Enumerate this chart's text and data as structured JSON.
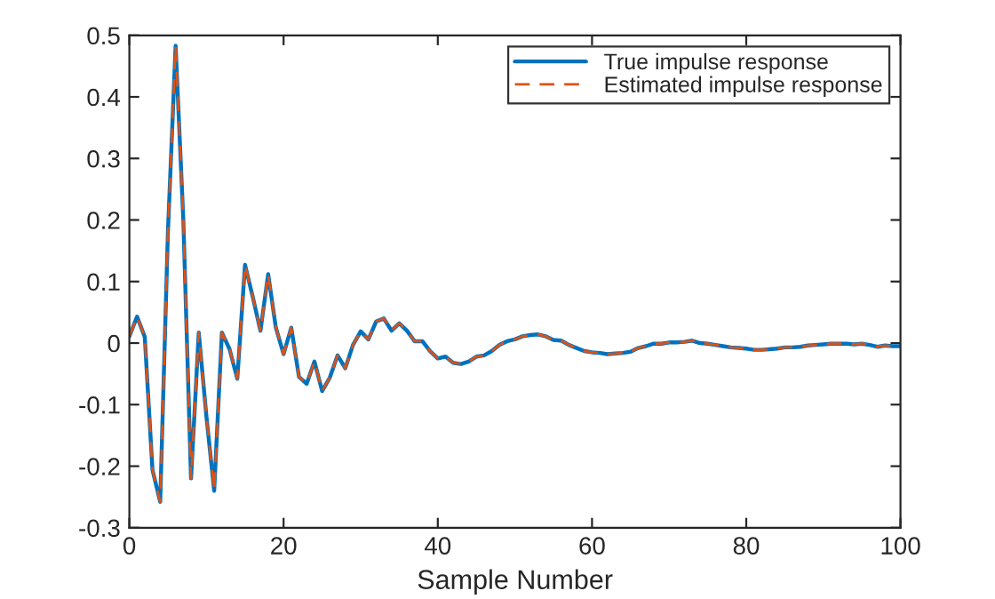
{
  "chart_data": {
    "type": "line",
    "xlabel": "Sample Number",
    "x": [
      0,
      1,
      2,
      3,
      4,
      5,
      6,
      7,
      8,
      9,
      10,
      11,
      12,
      13,
      14,
      15,
      16,
      17,
      18,
      19,
      20,
      21,
      22,
      23,
      24,
      25,
      26,
      27,
      28,
      29,
      30,
      31,
      32,
      33,
      34,
      35,
      36,
      37,
      38,
      39,
      40,
      41,
      42,
      43,
      44,
      45,
      46,
      47,
      48,
      49,
      50,
      51,
      52,
      53,
      54,
      55,
      56,
      57,
      58,
      59,
      60,
      61,
      62,
      63,
      64,
      65,
      66,
      67,
      68,
      69,
      70,
      71,
      72,
      73,
      74,
      75,
      76,
      77,
      78,
      79,
      80,
      81,
      82,
      83,
      84,
      85,
      86,
      87,
      88,
      89,
      90,
      91,
      92,
      93,
      94,
      95,
      96,
      97,
      98,
      99,
      100
    ],
    "series": [
      {
        "name": "True impulse response",
        "color": "#0072bd",
        "line_style": "solid",
        "values": [
          0.011,
          0.043,
          0.01,
          -0.206,
          -0.258,
          0.18,
          0.483,
          0.2,
          -0.22,
          0.017,
          -0.12,
          -0.24,
          0.017,
          -0.01,
          -0.058,
          0.127,
          0.075,
          0.02,
          0.112,
          0.025,
          -0.018,
          0.025,
          -0.055,
          -0.066,
          -0.03,
          -0.078,
          -0.056,
          -0.02,
          -0.041,
          -0.003,
          0.019,
          0.006,
          0.035,
          0.04,
          0.02,
          0.032,
          0.02,
          0.003,
          0.003,
          -0.013,
          -0.025,
          -0.022,
          -0.032,
          -0.034,
          -0.03,
          -0.022,
          -0.02,
          -0.013,
          -0.003,
          0.003,
          0.006,
          0.011,
          0.013,
          0.014,
          0.011,
          0.005,
          0.004,
          -0.003,
          -0.008,
          -0.013,
          -0.015,
          -0.016,
          -0.018,
          -0.017,
          -0.016,
          -0.014,
          -0.008,
          -0.005,
          -0.001,
          -0.001,
          0.001,
          0.001,
          0.002,
          0.004,
          0.0,
          -0.001,
          -0.003,
          -0.005,
          -0.007,
          -0.008,
          -0.009,
          -0.011,
          -0.011,
          -0.01,
          -0.009,
          -0.007,
          -0.007,
          -0.006,
          -0.004,
          -0.003,
          -0.002,
          -0.001,
          -0.001,
          -0.001,
          -0.002,
          -0.001,
          -0.003,
          -0.006,
          -0.004,
          -0.005,
          -0.005
        ]
      },
      {
        "name": "Estimated impulse response",
        "color": "#d95319",
        "line_style": "dashed",
        "values": [
          0.011,
          0.043,
          0.01,
          -0.206,
          -0.258,
          0.18,
          0.483,
          0.2,
          -0.22,
          0.017,
          -0.12,
          -0.24,
          0.017,
          -0.01,
          -0.058,
          0.127,
          0.075,
          0.02,
          0.112,
          0.025,
          -0.018,
          0.025,
          -0.055,
          -0.066,
          -0.03,
          -0.078,
          -0.056,
          -0.02,
          -0.041,
          -0.003,
          0.019,
          0.006,
          0.035,
          0.04,
          0.02,
          0.032,
          0.02,
          0.003,
          0.003,
          -0.013,
          -0.025,
          -0.022,
          -0.032,
          -0.034,
          -0.03,
          -0.022,
          -0.02,
          -0.013,
          -0.003,
          0.003,
          0.006,
          0.011,
          0.013,
          0.014,
          0.011,
          0.005,
          0.004,
          -0.003,
          -0.008,
          -0.013,
          -0.015,
          -0.016,
          -0.018,
          -0.017,
          -0.016,
          -0.014,
          -0.008,
          -0.005,
          -0.001,
          -0.001,
          0.001,
          0.001,
          0.002,
          0.004,
          0.0,
          -0.001,
          -0.003,
          -0.005,
          -0.007,
          -0.008,
          -0.009,
          -0.011,
          -0.011,
          -0.01,
          -0.009,
          -0.007,
          -0.007,
          -0.006,
          -0.004,
          -0.003,
          -0.002,
          -0.001,
          -0.001,
          -0.001,
          -0.002,
          -0.001,
          -0.003,
          -0.006,
          -0.004,
          -0.005,
          -0.005
        ]
      }
    ],
    "xlim": [
      0,
      100
    ],
    "xticks": [
      0,
      20,
      40,
      60,
      80,
      100
    ],
    "ylim": [
      -0.3,
      0.5
    ],
    "yticks": [
      -0.3,
      -0.2,
      -0.1,
      0,
      0.1,
      0.2,
      0.3,
      0.4,
      0.5
    ],
    "grid": false,
    "legend": "top right"
  }
}
